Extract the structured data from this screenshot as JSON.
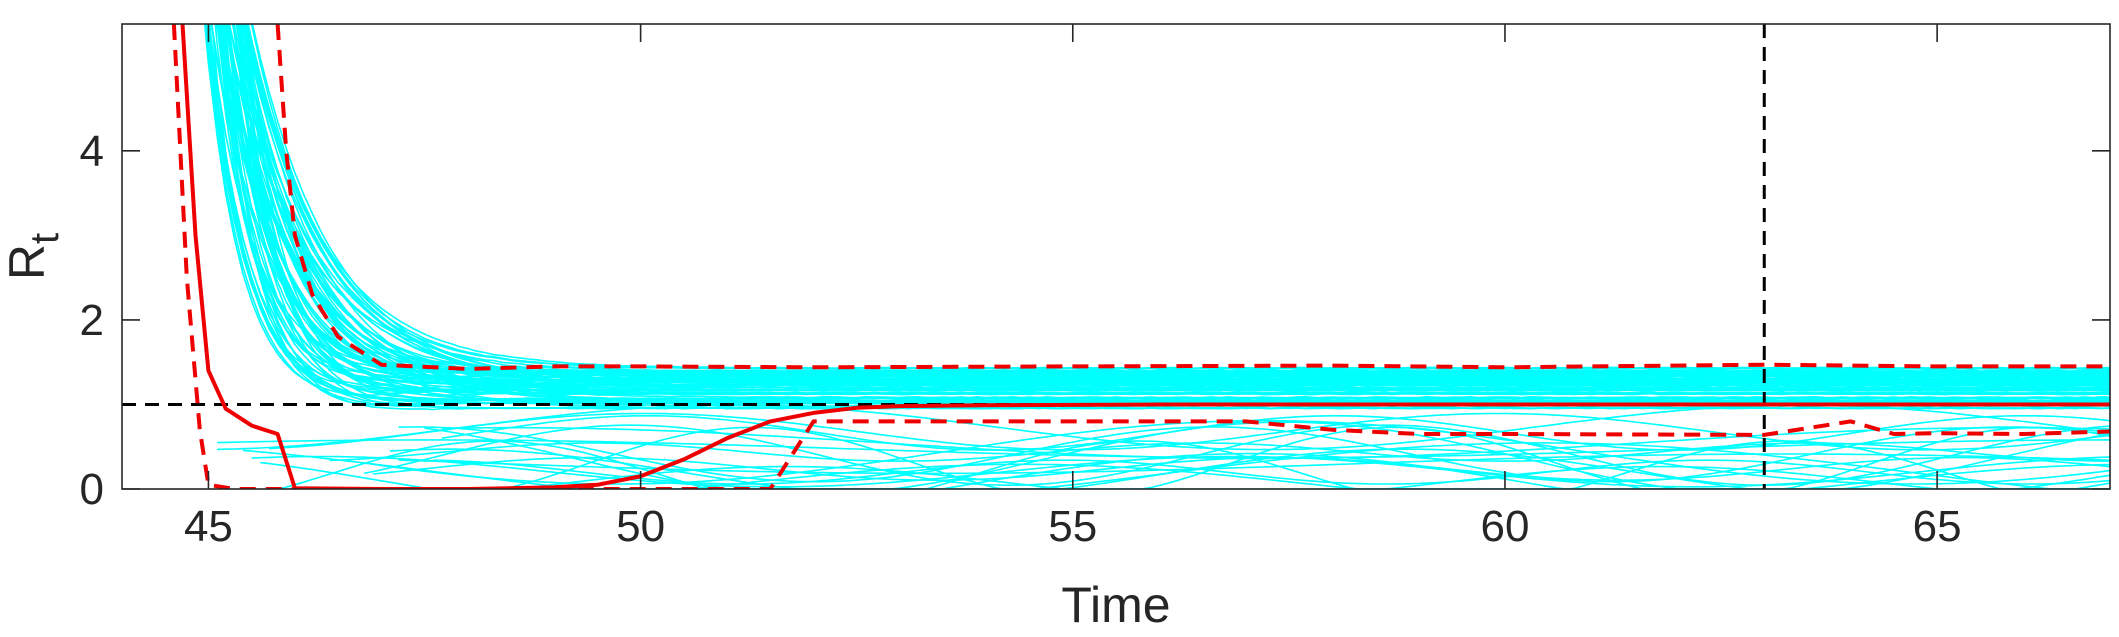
{
  "chart_data": {
    "type": "line",
    "title": "",
    "xlabel": "Time",
    "ylabel": "R",
    "ylabel_subscript": "t",
    "xlim": [
      44,
      67
    ],
    "ylim": [
      0,
      5.5
    ],
    "xticks": [
      45,
      50,
      55,
      60,
      65
    ],
    "xtick_labels": [
      "45",
      "50",
      "55",
      "60",
      "65"
    ],
    "yticks": [
      0,
      2,
      4
    ],
    "ytick_labels": [
      "0",
      "2",
      "4"
    ],
    "grid": false,
    "legend": "none",
    "colors": {
      "samples": "#00ffff",
      "estimate": "#ee0000",
      "reference": "#000000",
      "axes": "#262626"
    },
    "reference_lines": [
      {
        "orientation": "horizontal",
        "y": 1,
        "style": "dashed",
        "color": "#000000"
      },
      {
        "orientation": "vertical",
        "x": 63,
        "style": "dashed",
        "color": "#000000"
      }
    ],
    "series": [
      {
        "role": "mean",
        "color": "#ee0000",
        "style": "solid",
        "x": [
          44.7,
          44.85,
          45.0,
          45.2,
          45.5,
          45.8,
          46.0,
          47,
          48,
          49,
          49.5,
          50,
          50.5,
          51,
          51.5,
          52,
          52.5,
          53,
          54,
          56,
          58,
          60,
          62,
          64,
          66,
          67
        ],
        "y": [
          5.5,
          3.0,
          1.4,
          0.95,
          0.75,
          0.65,
          0.01,
          0.0,
          0.0,
          0.02,
          0.05,
          0.15,
          0.35,
          0.6,
          0.8,
          0.9,
          0.96,
          0.98,
          0.99,
          1.0,
          1.0,
          1.0,
          1.0,
          1.0,
          1.0,
          1.0
        ]
      },
      {
        "role": "upper-bound",
        "color": "#ee0000",
        "style": "dashed",
        "x": [
          45.8,
          45.9,
          46.0,
          46.2,
          46.5,
          47,
          48,
          49,
          50,
          52,
          55,
          58,
          60,
          63,
          65,
          67
        ],
        "y": [
          5.5,
          4.0,
          3.0,
          2.3,
          1.8,
          1.47,
          1.42,
          1.45,
          1.45,
          1.44,
          1.45,
          1.46,
          1.44,
          1.47,
          1.45,
          1.45
        ]
      },
      {
        "role": "lower-bound",
        "color": "#ee0000",
        "style": "dashed",
        "x": [
          44.6,
          44.75,
          44.9,
          45.0,
          45.3,
          46,
          47,
          48,
          50,
          51.5,
          52,
          55,
          57,
          58,
          59,
          60,
          63,
          64,
          64.5,
          65,
          66,
          67
        ],
        "y": [
          5.5,
          2.5,
          0.7,
          0.05,
          0.0,
          0.0,
          0.0,
          0.0,
          0.0,
          0.0,
          0.8,
          0.8,
          0.8,
          0.7,
          0.65,
          0.65,
          0.64,
          0.8,
          0.65,
          0.66,
          0.65,
          0.68
        ]
      }
    ],
    "sample_trajectories": {
      "count": 100,
      "color": "#00ffff",
      "note": "",
      "plateau_range": [
        0.6,
        1.45
      ],
      "decay_start_x": [
        44.8,
        46.2
      ]
    }
  }
}
